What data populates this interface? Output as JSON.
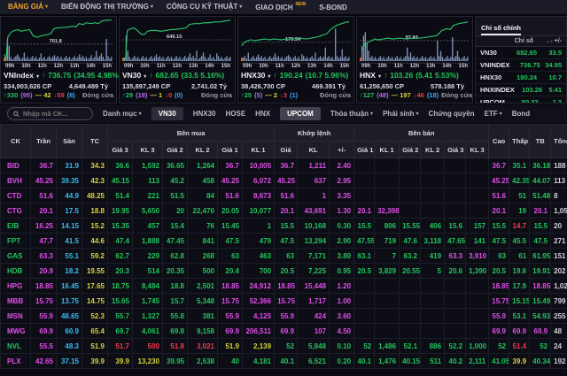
{
  "colors": {
    "accent": "#f0a42e",
    "up": "#21c55d",
    "down": "#f23b4a",
    "ceiling": "#e14eea",
    "floor": "#38bdf0",
    "reference": "#d9d43c",
    "text": "#d2d2dc"
  },
  "top_nav": {
    "items": [
      {
        "label": "BẢNG GIÁ",
        "active": true,
        "caret": true
      },
      {
        "label": "BIẾN ĐỘNG THỊ TRƯỜNG",
        "caret": true
      },
      {
        "label": "CÔNG CỤ KỸ THUẬT",
        "caret": true
      },
      {
        "label": "GIAO DỊCH",
        "badge": "NEW"
      },
      {
        "label": "S-BOND"
      }
    ]
  },
  "charts": [
    {
      "name": "VNIndex",
      "arrow": "↑",
      "value": "736.75",
      "change": "(34.95 4.98%)",
      "ref": "701.8",
      "volume": "334,903,626 CP",
      "turnover": "4,649.489 Tỷ",
      "adv": "↑330",
      "adv_ceil": "(95)",
      "unch": "— 42",
      "dec": "↓59",
      "dec_floor": "(8)",
      "session": "Đóng cửa",
      "xticks": [
        "09h",
        "10h",
        "11h",
        "12h",
        "13h",
        "14h",
        "15h"
      ]
    },
    {
      "name": "VN30",
      "arrow": "↑",
      "value": "682.65",
      "change": "(33.5 5.16%)",
      "ref": "649.15",
      "volume": "135,897,249 CP",
      "turnover": "2,741.02 Tỷ",
      "adv": "↑29",
      "adv_ceil": "(18)",
      "unch": "— 1",
      "dec": "↓0",
      "dec_floor": "(0)",
      "session": "Đóng cửa",
      "xticks": [
        "09h",
        "10h",
        "11h",
        "12h",
        "13h",
        "14h",
        "15h"
      ]
    },
    {
      "name": "HNX30",
      "arrow": "↑",
      "value": "190.24",
      "change": "(10.7 5.96%)",
      "ref": "179.54",
      "volume": "38,426,700 CP",
      "turnover": "469.391 Tỷ",
      "adv": "↑25",
      "adv_ceil": "(5)",
      "unch": "— 2",
      "dec": "↓3",
      "dec_floor": "(1)",
      "session": "Đóng cửa",
      "xticks": [
        "09h",
        "10h",
        "11h",
        "12h",
        "13h",
        "14h",
        "15h"
      ]
    },
    {
      "name": "HNX",
      "arrow": "↑",
      "value": "103.26",
      "change": "(5.41 5.53%)",
      "ref": "97.84",
      "volume": "61,256,650 CP",
      "turnover": "578.188 Tỷ",
      "adv": "↑127",
      "adv_ceil": "(48)",
      "unch": "— 197",
      "dec": "↓46",
      "dec_floor": "(18)",
      "session": "Đóng cửa",
      "xticks": [
        "09h",
        "10h",
        "11h",
        "12h",
        "13h",
        "14h",
        "15h"
      ]
    }
  ],
  "index_panel": {
    "title": "Chỉ số chính",
    "col_name": "Chỉ số",
    "col_change": "+/-",
    "rows": [
      {
        "name": "VN30",
        "value": "682.65",
        "change": "33.5"
      },
      {
        "name": "VNINDEX",
        "value": "736.75",
        "change": "34.95"
      },
      {
        "name": "HNX30",
        "value": "190.24",
        "change": "10.7"
      },
      {
        "name": "HNXINDEX",
        "value": "103.26",
        "change": "5.41"
      },
      {
        "name": "UPCOM",
        "value": "50.33",
        "change": "1.2"
      },
      {
        "name": "VNXALL",
        "value": "1044.23",
        "change": "50.42"
      }
    ]
  },
  "filter_bar": {
    "search_placeholder": "Nhập mã CK...",
    "category_label": "Danh mục",
    "tabs": [
      {
        "label": "VN30",
        "chip": true
      },
      {
        "label": "HNX30"
      },
      {
        "label": "HOSE"
      },
      {
        "label": "HNX"
      },
      {
        "label": "UPCOM",
        "chip": true,
        "active": true
      },
      {
        "label": "Thỏa thuận",
        "caret": true
      },
      {
        "label": "Phái sinh",
        "caret": true
      },
      {
        "label": "Chứng quyền"
      },
      {
        "label": "ETF",
        "caret": true
      },
      {
        "label": "Bond"
      }
    ]
  },
  "table": {
    "groups": {
      "buy": "Bên mua",
      "match": "Khớp lệnh",
      "sell": "Bên bán"
    },
    "cols": {
      "ck": "CK",
      "tran": "Trần",
      "san": "Sàn",
      "tc": "TC",
      "gia3": "Giá 3",
      "kl3": "KL 3",
      "gia2": "Giá 2",
      "kl2": "KL 2",
      "gia1": "Giá 1",
      "kl1": "KL 1",
      "gia": "Giá",
      "kl": "KL",
      "chg": "+/-",
      "cao": "Cao",
      "thap": "Thấp",
      "tb": "TB",
      "tong": "Tổng"
    },
    "rows": [
      {
        "ticker": "BID",
        "tc": "m",
        "cells": [
          "36.7",
          "31.9",
          "34.3",
          "36.6",
          "1,592",
          "36.65",
          "1,264",
          "36.7",
          "10,005",
          "36.7",
          "1,211",
          "2.40",
          "",
          "",
          "",
          "",
          "",
          "",
          "36.7",
          "35.1",
          "36.18",
          "188"
        ],
        "colors": [
          "m",
          "c",
          "y",
          "g",
          "g",
          "g",
          "g",
          "m",
          "m",
          "m",
          "m",
          "m",
          "",
          "",
          "",
          "",
          "",
          "",
          "m",
          "g",
          "g",
          "w"
        ]
      },
      {
        "ticker": "BVH",
        "tc": "m",
        "cells": [
          "45.25",
          "39.35",
          "42.3",
          "45.15",
          "113",
          "45.2",
          "458",
          "45.25",
          "6,072",
          "45.25",
          "637",
          "2.95",
          "",
          "",
          "",
          "",
          "",
          "",
          "45.25",
          "42.35",
          "44.07",
          "113"
        ],
        "colors": [
          "m",
          "c",
          "y",
          "g",
          "g",
          "g",
          "g",
          "m",
          "m",
          "m",
          "m",
          "m",
          "",
          "",
          "",
          "",
          "",
          "",
          "m",
          "g",
          "g",
          "w"
        ]
      },
      {
        "ticker": "CTD",
        "tc": "m",
        "cells": [
          "51.6",
          "44.9",
          "48.25",
          "51.4",
          "221",
          "51.5",
          "84",
          "51.6",
          "8,673",
          "51.6",
          "1",
          "3.35",
          "",
          "",
          "",
          "",
          "",
          "",
          "51.6",
          "51",
          "51.48",
          "8"
        ],
        "colors": [
          "m",
          "c",
          "y",
          "g",
          "g",
          "g",
          "g",
          "m",
          "m",
          "m",
          "m",
          "m",
          "",
          "",
          "",
          "",
          "",
          "",
          "m",
          "g",
          "g",
          "w"
        ]
      },
      {
        "ticker": "CTG",
        "tc": "m",
        "cells": [
          "20.1",
          "17.5",
          "18.8",
          "19.95",
          "5,650",
          "20",
          "22,470",
          "20.05",
          "10,077",
          "20.1",
          "43,691",
          "1.30",
          "20.1",
          "32,398",
          "",
          "",
          "",
          "",
          "20.1",
          "19",
          "20.1",
          "1,05"
        ],
        "colors": [
          "m",
          "c",
          "y",
          "g",
          "g",
          "g",
          "g",
          "g",
          "g",
          "m",
          "m",
          "m",
          "m",
          "m",
          "",
          "",
          "",
          "",
          "m",
          "g",
          "m",
          "w"
        ]
      },
      {
        "ticker": "EIB",
        "tc": "g",
        "cells": [
          "16.25",
          "14.15",
          "15.2",
          "15.35",
          "457",
          "15.4",
          "76",
          "15.45",
          "1",
          "15.5",
          "10,168",
          "0.30",
          "15.5",
          "806",
          "15.55",
          "406",
          "15.6",
          "157",
          "15.5",
          "14.7",
          "15.5",
          "20"
        ],
        "colors": [
          "m",
          "c",
          "y",
          "g",
          "g",
          "g",
          "g",
          "g",
          "g",
          "g",
          "g",
          "g",
          "g",
          "g",
          "g",
          "g",
          "g",
          "g",
          "g",
          "r",
          "g",
          "w"
        ]
      },
      {
        "ticker": "FPT",
        "tc": "g",
        "cells": [
          "47.7",
          "41.5",
          "44.6",
          "47.4",
          "1,888",
          "47.45",
          "841",
          "47.5",
          "479",
          "47.5",
          "13,294",
          "2.90",
          "47.55",
          "719",
          "47.6",
          "3,118",
          "47.65",
          "141",
          "47.5",
          "45.5",
          "47.5",
          "271"
        ],
        "colors": [
          "m",
          "c",
          "y",
          "g",
          "g",
          "g",
          "g",
          "g",
          "g",
          "g",
          "g",
          "g",
          "g",
          "g",
          "g",
          "g",
          "g",
          "g",
          "g",
          "g",
          "g",
          "w"
        ]
      },
      {
        "ticker": "GAS",
        "tc": "g",
        "cells": [
          "63.3",
          "55.1",
          "59.2",
          "62.7",
          "229",
          "62.8",
          "268",
          "63",
          "463",
          "63",
          "7,171",
          "3.80",
          "63.1",
          "7",
          "63.2",
          "419",
          "63.3",
          "3,910",
          "63",
          "61",
          "61.95",
          "151"
        ],
        "colors": [
          "m",
          "c",
          "y",
          "g",
          "g",
          "g",
          "g",
          "g",
          "g",
          "g",
          "g",
          "g",
          "g",
          "g",
          "g",
          "g",
          "m",
          "m",
          "g",
          "g",
          "g",
          "w"
        ]
      },
      {
        "ticker": "HDB",
        "tc": "g",
        "cells": [
          "20.9",
          "18.2",
          "19.55",
          "20.3",
          "514",
          "20.35",
          "500",
          "20.4",
          "700",
          "20.5",
          "7,225",
          "0.95",
          "20.5",
          "3,829",
          "20.55",
          "5",
          "20.6",
          "1,390",
          "20.5",
          "19.6",
          "19.91",
          "202"
        ],
        "colors": [
          "m",
          "c",
          "y",
          "g",
          "g",
          "g",
          "g",
          "g",
          "g",
          "g",
          "g",
          "g",
          "g",
          "g",
          "g",
          "g",
          "g",
          "g",
          "g",
          "g",
          "g",
          "w"
        ]
      },
      {
        "ticker": "HPG",
        "tc": "m",
        "cells": [
          "18.85",
          "16.45",
          "17.65",
          "18.75",
          "8,484",
          "18.8",
          "2,501",
          "18.85",
          "24,912",
          "18.85",
          "15,448",
          "1.20",
          "",
          "",
          "",
          "",
          "",
          "",
          "18.85",
          "17.9",
          "18.85",
          "1,02"
        ],
        "colors": [
          "m",
          "c",
          "y",
          "g",
          "g",
          "g",
          "g",
          "m",
          "m",
          "m",
          "m",
          "m",
          "",
          "",
          "",
          "",
          "",
          "",
          "m",
          "g",
          "m",
          "w"
        ]
      },
      {
        "ticker": "MBB",
        "tc": "m",
        "cells": [
          "15.75",
          "13.75",
          "14.75",
          "15.65",
          "1,745",
          "15.7",
          "5,348",
          "15.75",
          "52,366",
          "15.75",
          "1,717",
          "1.00",
          "",
          "",
          "",
          "",
          "",
          "",
          "15.75",
          "15.15",
          "15.49",
          "799"
        ],
        "colors": [
          "m",
          "c",
          "y",
          "g",
          "g",
          "g",
          "g",
          "m",
          "m",
          "m",
          "m",
          "m",
          "",
          "",
          "",
          "",
          "",
          "",
          "m",
          "g",
          "g",
          "w"
        ]
      },
      {
        "ticker": "MSN",
        "tc": "m",
        "cells": [
          "55.9",
          "48.65",
          "52.3",
          "55.7",
          "1,327",
          "55.8",
          "381",
          "55.9",
          "4,125",
          "55.9",
          "424",
          "3.60",
          "",
          "",
          "",
          "",
          "",
          "",
          "55.9",
          "53.1",
          "54.93",
          "255"
        ],
        "colors": [
          "m",
          "c",
          "y",
          "g",
          "g",
          "g",
          "g",
          "m",
          "m",
          "m",
          "m",
          "m",
          "",
          "",
          "",
          "",
          "",
          "",
          "m",
          "g",
          "g",
          "w"
        ]
      },
      {
        "ticker": "MWG",
        "tc": "m",
        "cells": [
          "69.9",
          "60.9",
          "65.4",
          "69.7",
          "4,061",
          "69.8",
          "9,158",
          "69.9",
          "206,511",
          "69.9",
          "107",
          "4.50",
          "",
          "",
          "",
          "",
          "",
          "",
          "69.9",
          "69.9",
          "69.9",
          "48"
        ],
        "colors": [
          "m",
          "c",
          "y",
          "g",
          "g",
          "g",
          "g",
          "m",
          "m",
          "m",
          "m",
          "m",
          "",
          "",
          "",
          "",
          "",
          "",
          "m",
          "m",
          "m",
          "w"
        ]
      },
      {
        "ticker": "NVL",
        "tc": "g",
        "cells": [
          "55.5",
          "48.3",
          "51.9",
          "51.7",
          "500",
          "51.8",
          "3,021",
          "51.9",
          "2,139",
          "52",
          "5,848",
          "0.10",
          "52",
          "1,486",
          "52.1",
          "886",
          "52.2",
          "1,000",
          "52",
          "51.4",
          "52",
          "24"
        ],
        "colors": [
          "m",
          "c",
          "y",
          "r",
          "r",
          "r",
          "r",
          "y",
          "y",
          "g",
          "g",
          "g",
          "g",
          "g",
          "g",
          "g",
          "g",
          "g",
          "g",
          "r",
          "g",
          "w"
        ]
      },
      {
        "ticker": "PLX",
        "tc": "m",
        "cells": [
          "42.65",
          "37.15",
          "39.9",
          "39.9",
          "13,230",
          "39.95",
          "2,538",
          "40",
          "4,181",
          "40.1",
          "6,521",
          "0.20",
          "40.1",
          "1,476",
          "40.15",
          "511",
          "40.2",
          "2,111",
          "41.05",
          "39.9",
          "40.34",
          "192"
        ],
        "colors": [
          "m",
          "c",
          "y",
          "y",
          "y",
          "g",
          "g",
          "g",
          "g",
          "g",
          "g",
          "g",
          "g",
          "g",
          "g",
          "g",
          "g",
          "g",
          "g",
          "y",
          "g",
          "w"
        ]
      }
    ]
  }
}
